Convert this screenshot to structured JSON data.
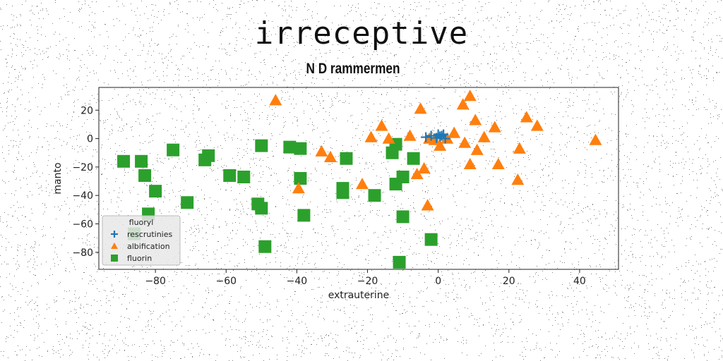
{
  "chart_data": {
    "type": "scatter",
    "title": "irreceptive",
    "subtitle": "N D rammermen",
    "xlabel": "extrauterine",
    "ylabel": "manto",
    "xlim": [
      -96,
      51
    ],
    "ylim": [
      -92,
      36
    ],
    "xticks": [
      -80,
      -60,
      -40,
      -20,
      0,
      20,
      40
    ],
    "yticks": [
      -80,
      -60,
      -40,
      -20,
      0,
      20
    ],
    "grid": false,
    "legend": {
      "placement": "lower-left",
      "title": "fluoryl",
      "entries": [
        "rescrutinies",
        "albification",
        "fluorin"
      ]
    },
    "series": [
      {
        "name": "rescrutinies",
        "marker": "plus",
        "color": "#1f77b4",
        "x": [
          -3.5,
          -2,
          -0.5,
          0,
          0.5,
          1,
          1.5,
          2
        ],
        "y": [
          1,
          2,
          0.5,
          3,
          1.5,
          2,
          3,
          0
        ]
      },
      {
        "name": "albification",
        "marker": "triangle",
        "color": "#ff7f0e",
        "x": [
          -46,
          -39.5,
          -33,
          -30.5,
          -21.5,
          -19,
          -16,
          -14,
          -8,
          -6,
          -5,
          -4,
          -3,
          -2.5,
          -1,
          0.5,
          2.5,
          4.5,
          7,
          7.5,
          9,
          9,
          10.5,
          11,
          13,
          16,
          17,
          22.5,
          23,
          25,
          28,
          44.5
        ],
        "y": [
          27,
          -35,
          -9,
          -13,
          -32,
          1,
          9,
          0,
          2,
          -25,
          21,
          -21,
          -47,
          0,
          -1,
          -5,
          0,
          4,
          24,
          -3,
          -18,
          30,
          13,
          -8,
          1,
          8,
          -18,
          -29,
          -7,
          15,
          9,
          -1
        ]
      },
      {
        "name": "fluorin",
        "marker": "square",
        "color": "#2ca02c",
        "x": [
          -89,
          -86,
          -84,
          -83,
          -82,
          -80,
          -75,
          -71,
          -66,
          -65,
          -59,
          -55,
          -51,
          -50,
          -50,
          -49,
          -42,
          -39,
          -39,
          -38,
          -27,
          -27,
          -26,
          -18,
          -13,
          -12,
          -12,
          -11,
          -10,
          -10,
          -7,
          -2
        ],
        "y": [
          -16,
          -67,
          -16,
          -26,
          -53,
          -37,
          -8,
          -45,
          -15,
          -12,
          -26,
          -27,
          -46,
          -49,
          -5,
          -76,
          -6,
          -7,
          -28,
          -54,
          -38,
          -35,
          -14,
          -40,
          -10,
          -4,
          -32,
          -87,
          -27,
          -55,
          -14,
          -71
        ]
      }
    ]
  }
}
